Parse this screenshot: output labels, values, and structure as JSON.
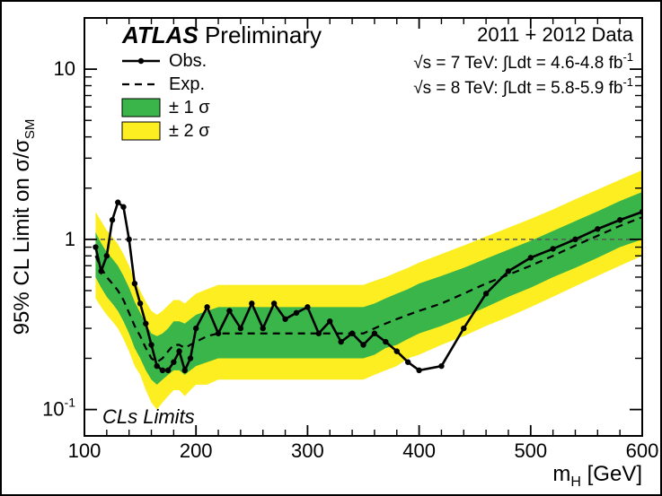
{
  "title_bold": "ATLAS",
  "title_rest": " Preliminary",
  "data_label": "2011 + 2012 Data",
  "lumi7": "√s = 7 TeV:  ∫Ldt = 4.6-4.8 fb",
  "lumi7_sup": "-1",
  "lumi8": "√s = 8 TeV:  ∫Ldt = 5.8-5.9 fb",
  "lumi8_sup": "-1",
  "legend": {
    "obs": "Obs.",
    "exp": "Exp.",
    "s1": "± 1 σ",
    "s2": "± 2 σ"
  },
  "cls_label": "CLs Limits",
  "xaxis_label": "m",
  "xaxis_sub": "H",
  "xaxis_unit": " [GeV]",
  "yaxis_label": "95% CL Limit on σ/σ",
  "yaxis_sub": "SM",
  "xticks": [
    100,
    200,
    300,
    400,
    500,
    600
  ],
  "yticks": [
    0.1,
    1,
    10
  ],
  "ytick_labels": [
    "-1",
    "1",
    "10"
  ],
  "chart": {
    "xlim": [
      100,
      600
    ],
    "ylim": [
      0.07,
      20
    ],
    "log_y": true,
    "colors": {
      "band2": "#fcee21",
      "band1": "#39b54a",
      "obs": "#000000",
      "exp": "#000000",
      "ref": "#555555",
      "bg": "#ffffff"
    },
    "x": [
      110,
      115,
      120,
      125,
      130,
      135,
      140,
      145,
      150,
      155,
      160,
      165,
      170,
      175,
      180,
      185,
      190,
      195,
      200,
      210,
      220,
      230,
      240,
      250,
      260,
      270,
      280,
      290,
      300,
      310,
      320,
      330,
      340,
      350,
      360,
      370,
      380,
      390,
      400,
      420,
      440,
      460,
      480,
      500,
      520,
      540,
      560,
      580,
      600
    ],
    "exp_y": [
      0.8,
      0.68,
      0.6,
      0.55,
      0.5,
      0.44,
      0.37,
      0.31,
      0.27,
      0.23,
      0.2,
      0.19,
      0.2,
      0.22,
      0.24,
      0.24,
      0.23,
      0.24,
      0.25,
      0.27,
      0.28,
      0.28,
      0.28,
      0.28,
      0.28,
      0.28,
      0.28,
      0.28,
      0.28,
      0.28,
      0.28,
      0.28,
      0.28,
      0.28,
      0.3,
      0.32,
      0.34,
      0.36,
      0.38,
      0.42,
      0.48,
      0.55,
      0.62,
      0.7,
      0.8,
      0.92,
      1.05,
      1.2,
      1.35
    ],
    "s1_lo": [
      0.6,
      0.52,
      0.46,
      0.42,
      0.38,
      0.33,
      0.28,
      0.23,
      0.2,
      0.17,
      0.15,
      0.14,
      0.15,
      0.16,
      0.17,
      0.17,
      0.16,
      0.17,
      0.18,
      0.19,
      0.2,
      0.2,
      0.2,
      0.2,
      0.2,
      0.2,
      0.2,
      0.2,
      0.2,
      0.2,
      0.2,
      0.2,
      0.2,
      0.2,
      0.21,
      0.23,
      0.24,
      0.26,
      0.28,
      0.31,
      0.35,
      0.4,
      0.46,
      0.52,
      0.6,
      0.68,
      0.78,
      0.9,
      1.0
    ],
    "s1_hi": [
      1.1,
      0.95,
      0.84,
      0.77,
      0.7,
      0.61,
      0.52,
      0.43,
      0.37,
      0.32,
      0.28,
      0.27,
      0.28,
      0.3,
      0.33,
      0.33,
      0.32,
      0.34,
      0.36,
      0.38,
      0.4,
      0.4,
      0.4,
      0.4,
      0.4,
      0.4,
      0.4,
      0.4,
      0.4,
      0.4,
      0.4,
      0.4,
      0.4,
      0.4,
      0.42,
      0.45,
      0.48,
      0.51,
      0.55,
      0.61,
      0.68,
      0.77,
      0.87,
      0.98,
      1.12,
      1.28,
      1.46,
      1.68,
      1.9
    ],
    "s2_lo": [
      0.45,
      0.4,
      0.36,
      0.33,
      0.3,
      0.26,
      0.22,
      0.18,
      0.16,
      0.13,
      0.11,
      0.1,
      0.11,
      0.12,
      0.13,
      0.13,
      0.12,
      0.13,
      0.14,
      0.14,
      0.15,
      0.15,
      0.15,
      0.15,
      0.15,
      0.15,
      0.15,
      0.15,
      0.15,
      0.15,
      0.15,
      0.15,
      0.15,
      0.15,
      0.16,
      0.17,
      0.18,
      0.2,
      0.21,
      0.24,
      0.27,
      0.31,
      0.35,
      0.4,
      0.46,
      0.53,
      0.61,
      0.7,
      0.8
    ],
    "s2_hi": [
      1.45,
      1.28,
      1.13,
      1.03,
      0.94,
      0.82,
      0.7,
      0.58,
      0.5,
      0.43,
      0.38,
      0.36,
      0.38,
      0.41,
      0.44,
      0.44,
      0.42,
      0.45,
      0.48,
      0.51,
      0.54,
      0.54,
      0.54,
      0.54,
      0.54,
      0.54,
      0.54,
      0.54,
      0.54,
      0.54,
      0.54,
      0.54,
      0.54,
      0.54,
      0.57,
      0.6,
      0.64,
      0.68,
      0.73,
      0.82,
      0.92,
      1.04,
      1.17,
      1.32,
      1.5,
      1.72,
      1.96,
      2.24,
      2.55
    ],
    "obs_y": [
      0.9,
      0.65,
      0.8,
      1.3,
      1.65,
      1.55,
      1.0,
      0.55,
      0.42,
      0.32,
      0.24,
      0.18,
      0.17,
      0.17,
      0.19,
      0.22,
      0.17,
      0.2,
      0.3,
      0.4,
      0.28,
      0.38,
      0.3,
      0.42,
      0.3,
      0.42,
      0.34,
      0.37,
      0.4,
      0.28,
      0.33,
      0.25,
      0.28,
      0.24,
      0.28,
      0.25,
      0.22,
      0.19,
      0.17,
      0.18,
      0.3,
      0.48,
      0.65,
      0.78,
      0.88,
      1.0,
      1.15,
      1.3,
      1.45
    ]
  }
}
